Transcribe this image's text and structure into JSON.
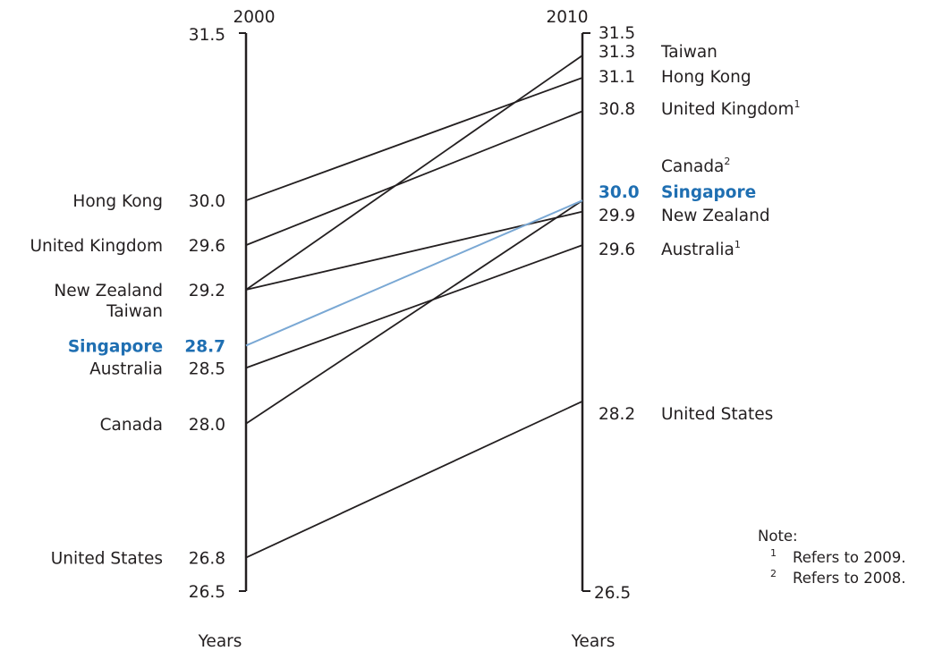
{
  "chart_data": {
    "type": "line",
    "x": [
      "2000",
      "2010"
    ],
    "axis_title": "Years",
    "ylim": [
      26.5,
      31.5
    ],
    "axis_end_labels": [
      "31.5",
      "26.5"
    ],
    "highlight": "Singapore",
    "colors": {
      "line": "#231f20",
      "highlight": "#1f6fb2",
      "highlight_line": "#7aa8d4"
    },
    "series": [
      {
        "name": "Taiwan",
        "values": [
          29.2,
          31.3
        ],
        "left_label": "Taiwan",
        "right_label": "Taiwan",
        "right_note": ""
      },
      {
        "name": "Hong Kong",
        "values": [
          30.0,
          31.1
        ],
        "left_label": "Hong Kong",
        "right_label": "Hong Kong",
        "right_note": ""
      },
      {
        "name": "United Kingdom",
        "values": [
          29.6,
          30.8
        ],
        "left_label": "United Kingdom",
        "right_label": "United Kingdom",
        "right_note": "1"
      },
      {
        "name": "Canada",
        "values": [
          28.0,
          30.0
        ],
        "left_label": "Canada",
        "right_label": "Canada",
        "right_note": "2"
      },
      {
        "name": "Singapore",
        "values": [
          28.7,
          30.0
        ],
        "left_label": "Singapore",
        "right_label": "Singapore",
        "right_note": ""
      },
      {
        "name": "New Zealand",
        "values": [
          29.2,
          29.9
        ],
        "left_label": "New Zealand",
        "right_label": "New Zealand",
        "right_note": ""
      },
      {
        "name": "Australia",
        "values": [
          28.5,
          29.6
        ],
        "left_label": "Australia",
        "right_label": "Australia",
        "right_note": "1"
      },
      {
        "name": "United States",
        "values": [
          26.8,
          28.2
        ],
        "left_label": "United States",
        "right_label": "United States",
        "right_note": ""
      }
    ],
    "left_labels": [
      {
        "names": [
          "Hong Kong"
        ],
        "value": "30.0"
      },
      {
        "names": [
          "United Kingdom"
        ],
        "value": "29.6"
      },
      {
        "names": [
          "New Zealand",
          "Taiwan"
        ],
        "value": "29.2"
      },
      {
        "names": [
          "Singapore"
        ],
        "value": "28.7",
        "highlight": true
      },
      {
        "names": [
          "Australia"
        ],
        "value": "28.5"
      },
      {
        "names": [
          "Canada"
        ],
        "value": "28.0"
      },
      {
        "names": [
          "United States"
        ],
        "value": "26.8"
      }
    ],
    "right_labels": [
      {
        "name": "Taiwan",
        "value": "31.3",
        "note": ""
      },
      {
        "name": "Hong Kong",
        "value": "31.1",
        "note": ""
      },
      {
        "name": "United Kingdom",
        "value": "30.8",
        "note": "1"
      },
      {
        "name": "Canada",
        "value": "",
        "note": "2"
      },
      {
        "name": "Singapore",
        "value": "30.0",
        "note": "",
        "highlight": true
      },
      {
        "name": "New Zealand",
        "value": "29.9",
        "note": ""
      },
      {
        "name": "Australia",
        "value": "29.6",
        "note": "1"
      },
      {
        "name": "United States",
        "value": "28.2",
        "note": ""
      }
    ],
    "notes": {
      "title": "Note:",
      "items": [
        {
          "mark": "1",
          "text": "Refers to 2009."
        },
        {
          "mark": "2",
          "text": "Refers to 2008."
        }
      ]
    }
  }
}
